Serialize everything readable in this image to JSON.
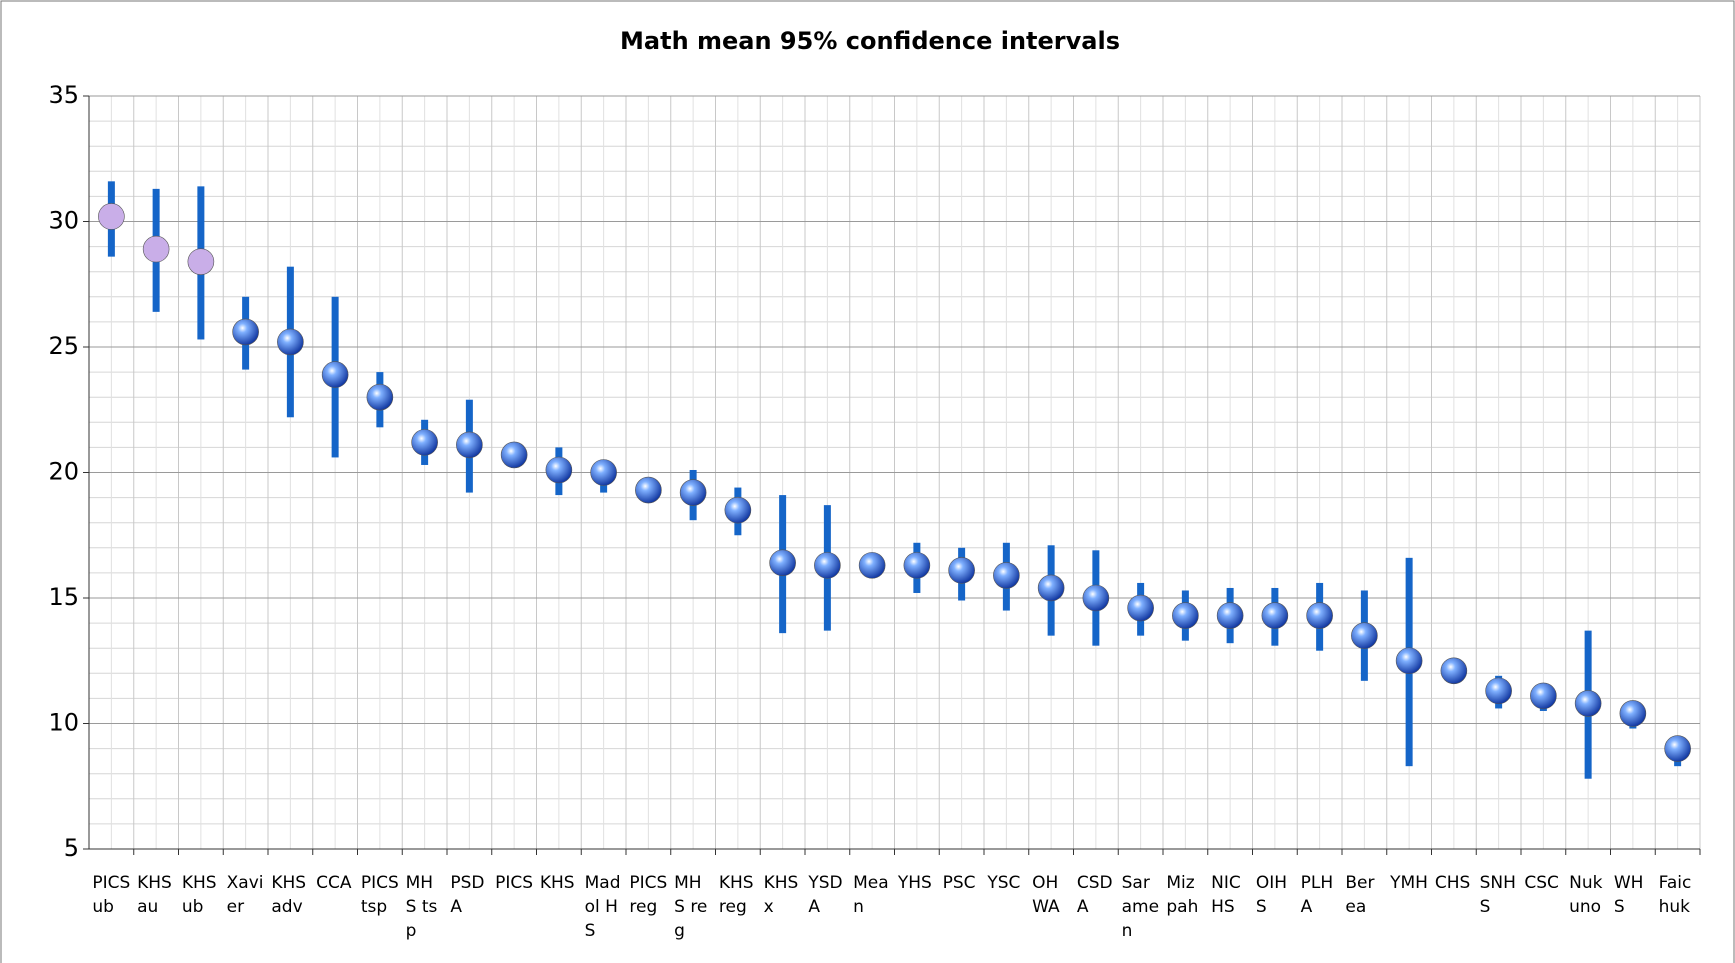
{
  "chart_data": {
    "type": "errorbar",
    "title": "Math mean 95% confidence intervals",
    "categories": [
      "PICS ub",
      "KHS au",
      "KHS ub",
      "Xavier",
      "KHS adv",
      "CCA",
      "PICS tsp",
      "MHS tsp",
      "PSDA",
      "PICS",
      "KHS",
      "Madol HS",
      "PICS reg",
      "MHS reg",
      "KHS reg",
      "KHS x",
      "YSDA",
      "Mean",
      "YHS",
      "PSC",
      "YSC",
      "OHWA",
      "CSDA",
      "Saramen",
      "Mizpah",
      "NICHS",
      "OIHS",
      "PLHA",
      "Berea",
      "YMH",
      "CHS",
      "SNHS",
      "CSC",
      "Nukuno",
      "WHS",
      "Faichuk"
    ],
    "values": [
      30.2,
      28.9,
      28.4,
      25.6,
      25.2,
      23.9,
      23.0,
      21.2,
      21.1,
      20.7,
      20.1,
      20.0,
      19.3,
      19.2,
      18.5,
      16.4,
      16.3,
      16.3,
      16.3,
      16.1,
      15.9,
      15.4,
      15.0,
      14.6,
      14.3,
      14.3,
      14.3,
      14.3,
      13.5,
      12.5,
      12.1,
      11.3,
      11.1,
      10.8,
      10.4,
      9.0
    ],
    "lower": [
      28.6,
      26.4,
      25.3,
      24.1,
      22.2,
      20.6,
      21.8,
      20.3,
      19.2,
      20.5,
      19.1,
      19.2,
      19.0,
      18.1,
      17.5,
      13.6,
      13.7,
      16.1,
      15.2,
      14.9,
      14.5,
      13.5,
      13.1,
      13.5,
      13.3,
      13.2,
      13.1,
      12.9,
      11.7,
      8.3,
      11.8,
      10.6,
      10.5,
      7.8,
      9.8,
      8.3
    ],
    "upper": [
      31.6,
      31.3,
      31.4,
      27.0,
      28.2,
      27.0,
      24.0,
      22.1,
      22.9,
      20.9,
      21.0,
      20.5,
      19.6,
      20.1,
      19.4,
      19.1,
      18.7,
      16.5,
      17.2,
      17.0,
      17.2,
      17.1,
      16.9,
      15.6,
      15.3,
      15.4,
      15.4,
      15.6,
      15.3,
      16.6,
      12.4,
      11.9,
      11.6,
      13.7,
      10.8,
      9.3
    ],
    "point_colors": [
      "#c9aee8",
      "#c9aee8",
      "#c9aee8",
      "#1f5fd8",
      "#1f5fd8",
      "#1f5fd8",
      "#1f5fd8",
      "#1f5fd8",
      "#1f5fd8",
      "#1f5fd8",
      "#1f5fd8",
      "#1f5fd8",
      "#1f5fd8",
      "#1f5fd8",
      "#1f5fd8",
      "#1f5fd8",
      "#1f5fd8",
      "#1f5fd8",
      "#1f5fd8",
      "#1f5fd8",
      "#1f5fd8",
      "#1f5fd8",
      "#1f5fd8",
      "#1f5fd8",
      "#1f5fd8",
      "#1f5fd8",
      "#1f5fd8",
      "#1f5fd8",
      "#1f5fd8",
      "#1f5fd8",
      "#1f5fd8",
      "#1f5fd8",
      "#1f5fd8",
      "#1f5fd8",
      "#1f5fd8",
      "#1f5fd8"
    ],
    "error_color": "#1565c8",
    "ylim": [
      5,
      35
    ],
    "yticks": [
      5,
      10,
      15,
      20,
      25,
      30,
      35
    ],
    "grid": true
  }
}
